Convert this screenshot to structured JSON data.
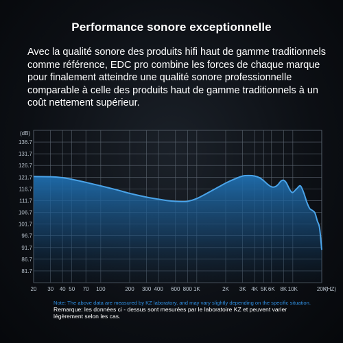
{
  "heading": "Performance sonore exceptionnelle",
  "description": "Avec la qualité sonore des produits hifi haut de gamme traditionnels comme référence, EDC pro combine les forces de chaque marque pour finalement atteindre une qualité sonore professionnelle comparable à celle des produits haut de gamme traditionnels à un coût nettement supérieur.",
  "notes": {
    "english": "Note: The above data are measured by KZ laboratory, and may vary slightly depending on the specific situation.",
    "french": "Remarque: les données ci - dessus sont mesurées par le laboratoire KZ et peuvent varier légèrement selon les cas."
  },
  "colors": {
    "curve": "#4aa3e8",
    "fill_top": "#1f6fb0",
    "grid": "#5b6570",
    "note_blue": "#2f8ee0"
  },
  "chart_data": {
    "type": "area",
    "x_scale": "log",
    "y_unit_label": "(dB)",
    "x_unit_label": "(HZ)",
    "xlim": [
      20,
      20000
    ],
    "ylim": [
      76.7,
      141.7
    ],
    "y_tick_labels": [
      "136.7",
      "131.7",
      "126.7",
      "121.7",
      "116.7",
      "111.7",
      "106.7",
      "101.7",
      "96.7",
      "91.7",
      "86.7",
      "81.7"
    ],
    "x_ticks": [
      {
        "value": 20,
        "label": "20"
      },
      {
        "value": 30,
        "label": "30"
      },
      {
        "value": 40,
        "label": "40"
      },
      {
        "value": 50,
        "label": "50"
      },
      {
        "value": 70,
        "label": "70"
      },
      {
        "value": 100,
        "label": "100"
      },
      {
        "value": 200,
        "label": "200"
      },
      {
        "value": 300,
        "label": "300"
      },
      {
        "value": 400,
        "label": "400"
      },
      {
        "value": 600,
        "label": "600"
      },
      {
        "value": 800,
        "label": "800"
      },
      {
        "value": 1000,
        "label": "1K"
      },
      {
        "value": 2000,
        "label": "2K"
      },
      {
        "value": 3000,
        "label": "3K"
      },
      {
        "value": 4000,
        "label": "4K"
      },
      {
        "value": 5000,
        "label": "5K"
      },
      {
        "value": 6000,
        "label": "6K"
      },
      {
        "value": 8000,
        "label": "8K"
      },
      {
        "value": 10000,
        "label": "10K"
      },
      {
        "value": 20000,
        "label": "20K"
      }
    ],
    "grid": true,
    "series": [
      {
        "x": [
          20,
          30,
          40,
          50,
          70,
          100,
          150,
          200,
          300,
          400,
          500,
          600,
          700,
          800,
          1000,
          1300,
          1700,
          2000,
          2500,
          3000,
          3500,
          4000,
          4500,
          5000,
          5500,
          6000,
          6500,
          7000,
          7500,
          8000,
          8500,
          9000,
          9500,
          10000,
          11000,
          12000,
          13000,
          14000,
          15000,
          16000,
          17000,
          18000,
          19000,
          20000
        ],
        "y": [
          122.0,
          121.9,
          121.5,
          120.8,
          119.5,
          118.0,
          116.2,
          114.8,
          113.2,
          112.3,
          111.7,
          111.4,
          111.3,
          111.4,
          112.6,
          115.0,
          117.6,
          119.2,
          121.0,
          122.2,
          122.4,
          122.2,
          121.5,
          120.1,
          118.6,
          117.6,
          117.6,
          118.5,
          120.0,
          120.4,
          119.5,
          117.5,
          115.8,
          115.2,
          116.8,
          118.0,
          115.0,
          111.0,
          108.3,
          107.5,
          106.4,
          103.0,
          100.0,
          90.7
        ]
      }
    ]
  }
}
